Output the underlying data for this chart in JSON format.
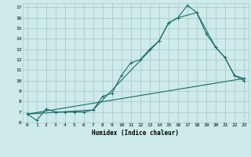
{
  "xlabel": "Humidex (Indice chaleur)",
  "bg_color": "#ceeaea",
  "grid_color": "#aacccc",
  "line_color": "#1a6b6b",
  "xlim": [
    -0.5,
    23.5
  ],
  "ylim": [
    6,
    17.4
  ],
  "xtick_vals": [
    0,
    1,
    2,
    3,
    4,
    5,
    6,
    7,
    8,
    9,
    10,
    11,
    12,
    13,
    14,
    15,
    16,
    17,
    18,
    19,
    20,
    21,
    22,
    23
  ],
  "ytick_vals": [
    6,
    7,
    8,
    9,
    10,
    11,
    12,
    13,
    14,
    15,
    16,
    17
  ],
  "line1_x": [
    0,
    1,
    2,
    3,
    4,
    5,
    6,
    7,
    8,
    9,
    10,
    11,
    12,
    13,
    14,
    15,
    16,
    17,
    18,
    19,
    20,
    21,
    22,
    23
  ],
  "line1_y": [
    6.8,
    6.2,
    7.3,
    7.0,
    7.0,
    7.0,
    7.0,
    7.2,
    8.5,
    8.8,
    10.5,
    11.7,
    12.0,
    13.0,
    13.8,
    15.5,
    16.0,
    17.2,
    16.5,
    14.5,
    13.2,
    12.2,
    10.5,
    10.0
  ],
  "line2_x": [
    0,
    7,
    14,
    15,
    16,
    18,
    20,
    21,
    22,
    23
  ],
  "line2_y": [
    6.8,
    7.2,
    13.8,
    15.5,
    16.0,
    16.5,
    13.2,
    12.2,
    10.5,
    10.2
  ],
  "line3_x": [
    0,
    23
  ],
  "line3_y": [
    6.8,
    10.2
  ]
}
